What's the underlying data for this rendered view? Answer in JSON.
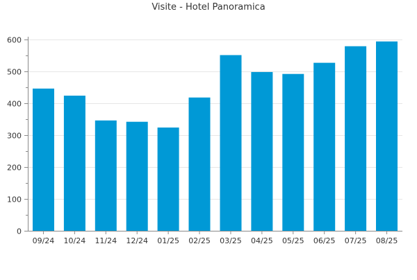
{
  "chart_data": {
    "type": "bar",
    "title": "Visite - Hotel Panoramica",
    "xlabel": "",
    "ylabel": "",
    "categories": [
      "09/24",
      "10/24",
      "11/24",
      "12/24",
      "01/25",
      "02/25",
      "03/25",
      "04/25",
      "05/25",
      "06/25",
      "07/25",
      "08/25"
    ],
    "values": [
      446,
      424,
      346,
      342,
      324,
      418,
      551,
      498,
      492,
      527,
      579,
      594
    ],
    "ylim": [
      0,
      600
    ],
    "yticks": [
      0,
      100,
      200,
      300,
      400,
      500,
      600
    ],
    "grid": true,
    "legend": "none",
    "colors": {
      "bar": "#0099d6",
      "grid": "#e6e6e6",
      "axis": "#8a8a8a",
      "text": "#333333"
    }
  }
}
